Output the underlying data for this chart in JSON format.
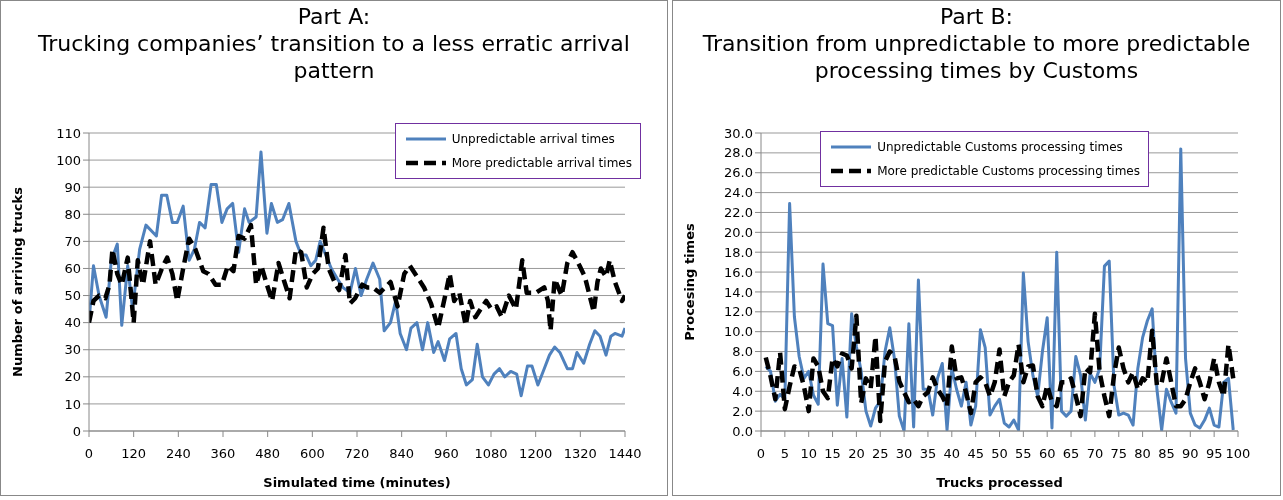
{
  "chart_data": [
    {
      "type": "line",
      "title": "Part A:",
      "subtitle": "Trucking companies’ transition to a less erratic arrival pattern",
      "xlabel": "Simulated time (minutes)",
      "ylabel": "Number of arriving trucks",
      "xlim": [
        0,
        1440
      ],
      "xticks": [
        0,
        120,
        240,
        360,
        480,
        600,
        720,
        840,
        960,
        1080,
        1200,
        1320,
        1440
      ],
      "ylim": [
        0,
        110
      ],
      "yticks": [
        0,
        10,
        20,
        30,
        40,
        50,
        60,
        70,
        80,
        90,
        100,
        110
      ],
      "grid": "y",
      "legend": "top right",
      "series": [
        {
          "name": "Unpredictable arrival times",
          "color": "#4f81bd",
          "line_style": "solid",
          "x": [
            0,
            12,
            27,
            46,
            60,
            76,
            88,
            104,
            117,
            136,
            153,
            181,
            195,
            209,
            224,
            237,
            253,
            269,
            283,
            297,
            312,
            328,
            342,
            357,
            371,
            386,
            402,
            418,
            430,
            449,
            462,
            478,
            490,
            506,
            520,
            537,
            556,
            570,
            583,
            596,
            609,
            621,
            636,
            651,
            668,
            682,
            701,
            716,
            731,
            746,
            763,
            781,
            793,
            810,
            824,
            836,
            853,
            865,
            881,
            896,
            910,
            926,
            938,
            955,
            969,
            986,
            1000,
            1014,
            1030,
            1043,
            1057,
            1073,
            1088,
            1103,
            1117,
            1133,
            1149,
            1161,
            1178,
            1190,
            1206,
            1223,
            1237,
            1251,
            1265,
            1285,
            1299,
            1311,
            1329,
            1345,
            1359,
            1373,
            1389,
            1402,
            1413,
            1432,
            1440
          ],
          "values": [
            40,
            61,
            50,
            42,
            63,
            69,
            39,
            61,
            45,
            67,
            76,
            72,
            87,
            87,
            77,
            77,
            83,
            63,
            67,
            77,
            75,
            91,
            91,
            77,
            82,
            84,
            66,
            82,
            77,
            79,
            103,
            73,
            84,
            77,
            78,
            84,
            70,
            65,
            65,
            61,
            63,
            70,
            65,
            60,
            56,
            53,
            51,
            60,
            50,
            56,
            62,
            56,
            37,
            40,
            48,
            36,
            30,
            38,
            40,
            30,
            40,
            29,
            33,
            26,
            34,
            36,
            23,
            17,
            19,
            32,
            20,
            17,
            21,
            23,
            20,
            22,
            21,
            13,
            24,
            24,
            17,
            23,
            28,
            31,
            29,
            23,
            23,
            29,
            25,
            32,
            37,
            35,
            28,
            35,
            36,
            35,
            38
          ]
        },
        {
          "name": "More predictable arrival times",
          "color": "#000000",
          "line_style": "dashed",
          "x": [
            0,
            12,
            27,
            44,
            55,
            63,
            76,
            88,
            104,
            120,
            131,
            145,
            164,
            179,
            196,
            210,
            224,
            237,
            253,
            269,
            286,
            307,
            321,
            340,
            357,
            373,
            388,
            402,
            418,
            435,
            449,
            463,
            478,
            492,
            509,
            525,
            539,
            556,
            570,
            585,
            601,
            615,
            630,
            644,
            663,
            672,
            689,
            701,
            715,
            734,
            748,
            762,
            781,
            810,
            829,
            847,
            862,
            881,
            900,
            919,
            938,
            957,
            969,
            981,
            995,
            1012,
            1024,
            1038,
            1052,
            1067,
            1081,
            1095,
            1109,
            1128,
            1147,
            1164,
            1176,
            1200,
            1223,
            1233,
            1240,
            1251,
            1270,
            1285,
            1299,
            1318,
            1332,
            1356,
            1366,
            1375,
            1389,
            1399,
            1413,
            1432,
            1440
          ],
          "values": [
            40,
            48,
            50,
            49,
            54,
            67,
            58,
            54,
            64,
            40,
            63,
            54,
            70,
            54,
            60,
            64,
            58,
            48,
            60,
            71,
            67,
            59,
            58,
            54,
            54,
            61,
            59,
            72,
            71,
            76,
            54,
            61,
            54,
            48,
            62,
            55,
            49,
            67,
            66,
            53,
            58,
            60,
            75,
            60,
            54,
            52,
            65,
            47,
            49,
            54,
            53,
            53,
            51,
            55,
            46,
            58,
            61,
            57,
            53,
            47,
            38,
            50,
            58,
            48,
            51,
            39,
            48,
            42,
            45,
            48,
            45,
            46,
            42,
            50,
            45,
            63,
            51,
            51,
            53,
            48,
            37,
            56,
            50,
            62,
            66,
            61,
            57,
            44,
            55,
            60,
            57,
            63,
            55,
            48,
            50
          ]
        }
      ]
    },
    {
      "type": "line",
      "title": "Part B:",
      "subtitle": "Transition from unpredictable to more predictable processing times by Customs",
      "xlabel": "Trucks processed",
      "ylabel": "Procesing times",
      "xlim": [
        0,
        100
      ],
      "xticks": [
        0,
        5,
        10,
        15,
        20,
        25,
        30,
        35,
        40,
        45,
        50,
        55,
        60,
        65,
        70,
        75,
        80,
        85,
        90,
        95,
        100
      ],
      "ylim": [
        0,
        30
      ],
      "yticks": [
        {
          "value": 0,
          "label": "0.0"
        },
        {
          "value": 2,
          "label": "2.0"
        },
        {
          "value": 4,
          "label": "4.0"
        },
        {
          "value": 6,
          "label": "6.0"
        },
        {
          "value": 8,
          "label": "8.0"
        },
        {
          "value": 10,
          "label": "10.0"
        },
        {
          "value": 12,
          "label": "12.0"
        },
        {
          "value": 14,
          "label": "14.0"
        },
        {
          "value": 16,
          "label": "16.0"
        },
        {
          "value": 18,
          "label": "18.0"
        },
        {
          "value": 20,
          "label": "20.0"
        },
        {
          "value": 22,
          "label": "22.0"
        },
        {
          "value": 24,
          "label": "24.0"
        },
        {
          "value": 26,
          "label": "26.0"
        },
        {
          "value": 28,
          "label": "28.0"
        },
        {
          "value": 30,
          "label": "30.0"
        }
      ],
      "grid": "y",
      "legend": "top right",
      "x": [
        1,
        2,
        3,
        4,
        5,
        6,
        7,
        8,
        9,
        10,
        11,
        12,
        13,
        14,
        15,
        16,
        17,
        18,
        19,
        20,
        21,
        22,
        23,
        24,
        25,
        26,
        27,
        28,
        29,
        30,
        31,
        32,
        33,
        34,
        35,
        36,
        37,
        38,
        39,
        40,
        41,
        42,
        43,
        44,
        45,
        46,
        47,
        48,
        49,
        50,
        51,
        52,
        53,
        54,
        55,
        56,
        57,
        58,
        59,
        60,
        61,
        62,
        63,
        64,
        65,
        66,
        67,
        68,
        69,
        70,
        71,
        72,
        73,
        74,
        75,
        76,
        77,
        78,
        79,
        80,
        81,
        82,
        83,
        84,
        85,
        86,
        87,
        88,
        89,
        90,
        91,
        92,
        93,
        94,
        95,
        96,
        97,
        98,
        99
      ],
      "series": [
        {
          "name": "Unpredictable Customs processing times",
          "color": "#4f81bd",
          "line_style": "solid",
          "values": [
            6.5,
            6.0,
            3.0,
            3.7,
            3.2,
            22.9,
            11.5,
            7.5,
            5.3,
            6.0,
            3.6,
            2.7,
            16.8,
            10.8,
            10.6,
            2.6,
            7.3,
            1.4,
            11.8,
            8.5,
            6.0,
            2.0,
            0.5,
            2.3,
            3.0,
            8.0,
            10.4,
            7.2,
            1.5,
            0.0,
            10.8,
            0.4,
            15.2,
            4.2,
            4.2,
            1.6,
            5.3,
            6.8,
            0.1,
            6.3,
            4.2,
            2.5,
            4.9,
            0.6,
            2.5,
            10.2,
            8.4,
            1.6,
            2.5,
            3.2,
            0.8,
            0.4,
            1.1,
            0.1,
            15.9,
            9.0,
            5.6,
            3.5,
            8.0,
            11.4,
            0.3,
            18.0,
            2.0,
            1.5,
            2.0,
            7.5,
            5.6,
            1.1,
            5.8,
            4.9,
            6.3,
            16.6,
            17.1,
            4.6,
            1.6,
            1.8,
            1.6,
            0.6,
            6.3,
            9.4,
            11.1,
            12.3,
            4.2,
            0.1,
            4.2,
            2.9,
            1.8,
            28.4,
            7.3,
            1.8,
            0.6,
            0.3,
            1.1,
            2.3,
            0.6,
            0.4,
            4.9,
            5.3,
            0.1
          ]
        },
        {
          "name": "More predictable Customs processing times",
          "color": "#000000",
          "line_style": "dashed",
          "values": [
            7.4,
            5.5,
            3.2,
            7.9,
            2.2,
            4.5,
            6.5,
            6.3,
            4.5,
            2.0,
            7.3,
            6.5,
            4.0,
            3.3,
            7.3,
            6.5,
            7.8,
            7.6,
            6.3,
            11.6,
            2.8,
            5.3,
            4.3,
            9.5,
            1.0,
            7.0,
            8.0,
            7.5,
            5.0,
            3.9,
            2.9,
            3.2,
            2.5,
            3.5,
            3.9,
            5.4,
            4.2,
            3.5,
            2.5,
            8.5,
            5.3,
            5.4,
            3.9,
            1.8,
            4.9,
            5.4,
            4.9,
            3.5,
            4.9,
            8.2,
            3.5,
            4.9,
            5.6,
            8.7,
            4.9,
            6.5,
            6.6,
            3.5,
            2.5,
            4.6,
            2.9,
            2.5,
            4.9,
            4.9,
            5.3,
            3.5,
            1.5,
            6.3,
            5.9,
            11.8,
            5.9,
            3.5,
            1.5,
            5.6,
            8.4,
            6.3,
            4.9,
            5.9,
            4.2,
            5.3,
            4.9,
            10.1,
            4.6,
            4.9,
            7.3,
            4.9,
            2.5,
            2.5,
            3.2,
            4.9,
            6.3,
            4.9,
            3.2,
            4.9,
            7.3,
            4.9,
            3.5,
            8.7,
            5.3
          ]
        }
      ]
    }
  ]
}
